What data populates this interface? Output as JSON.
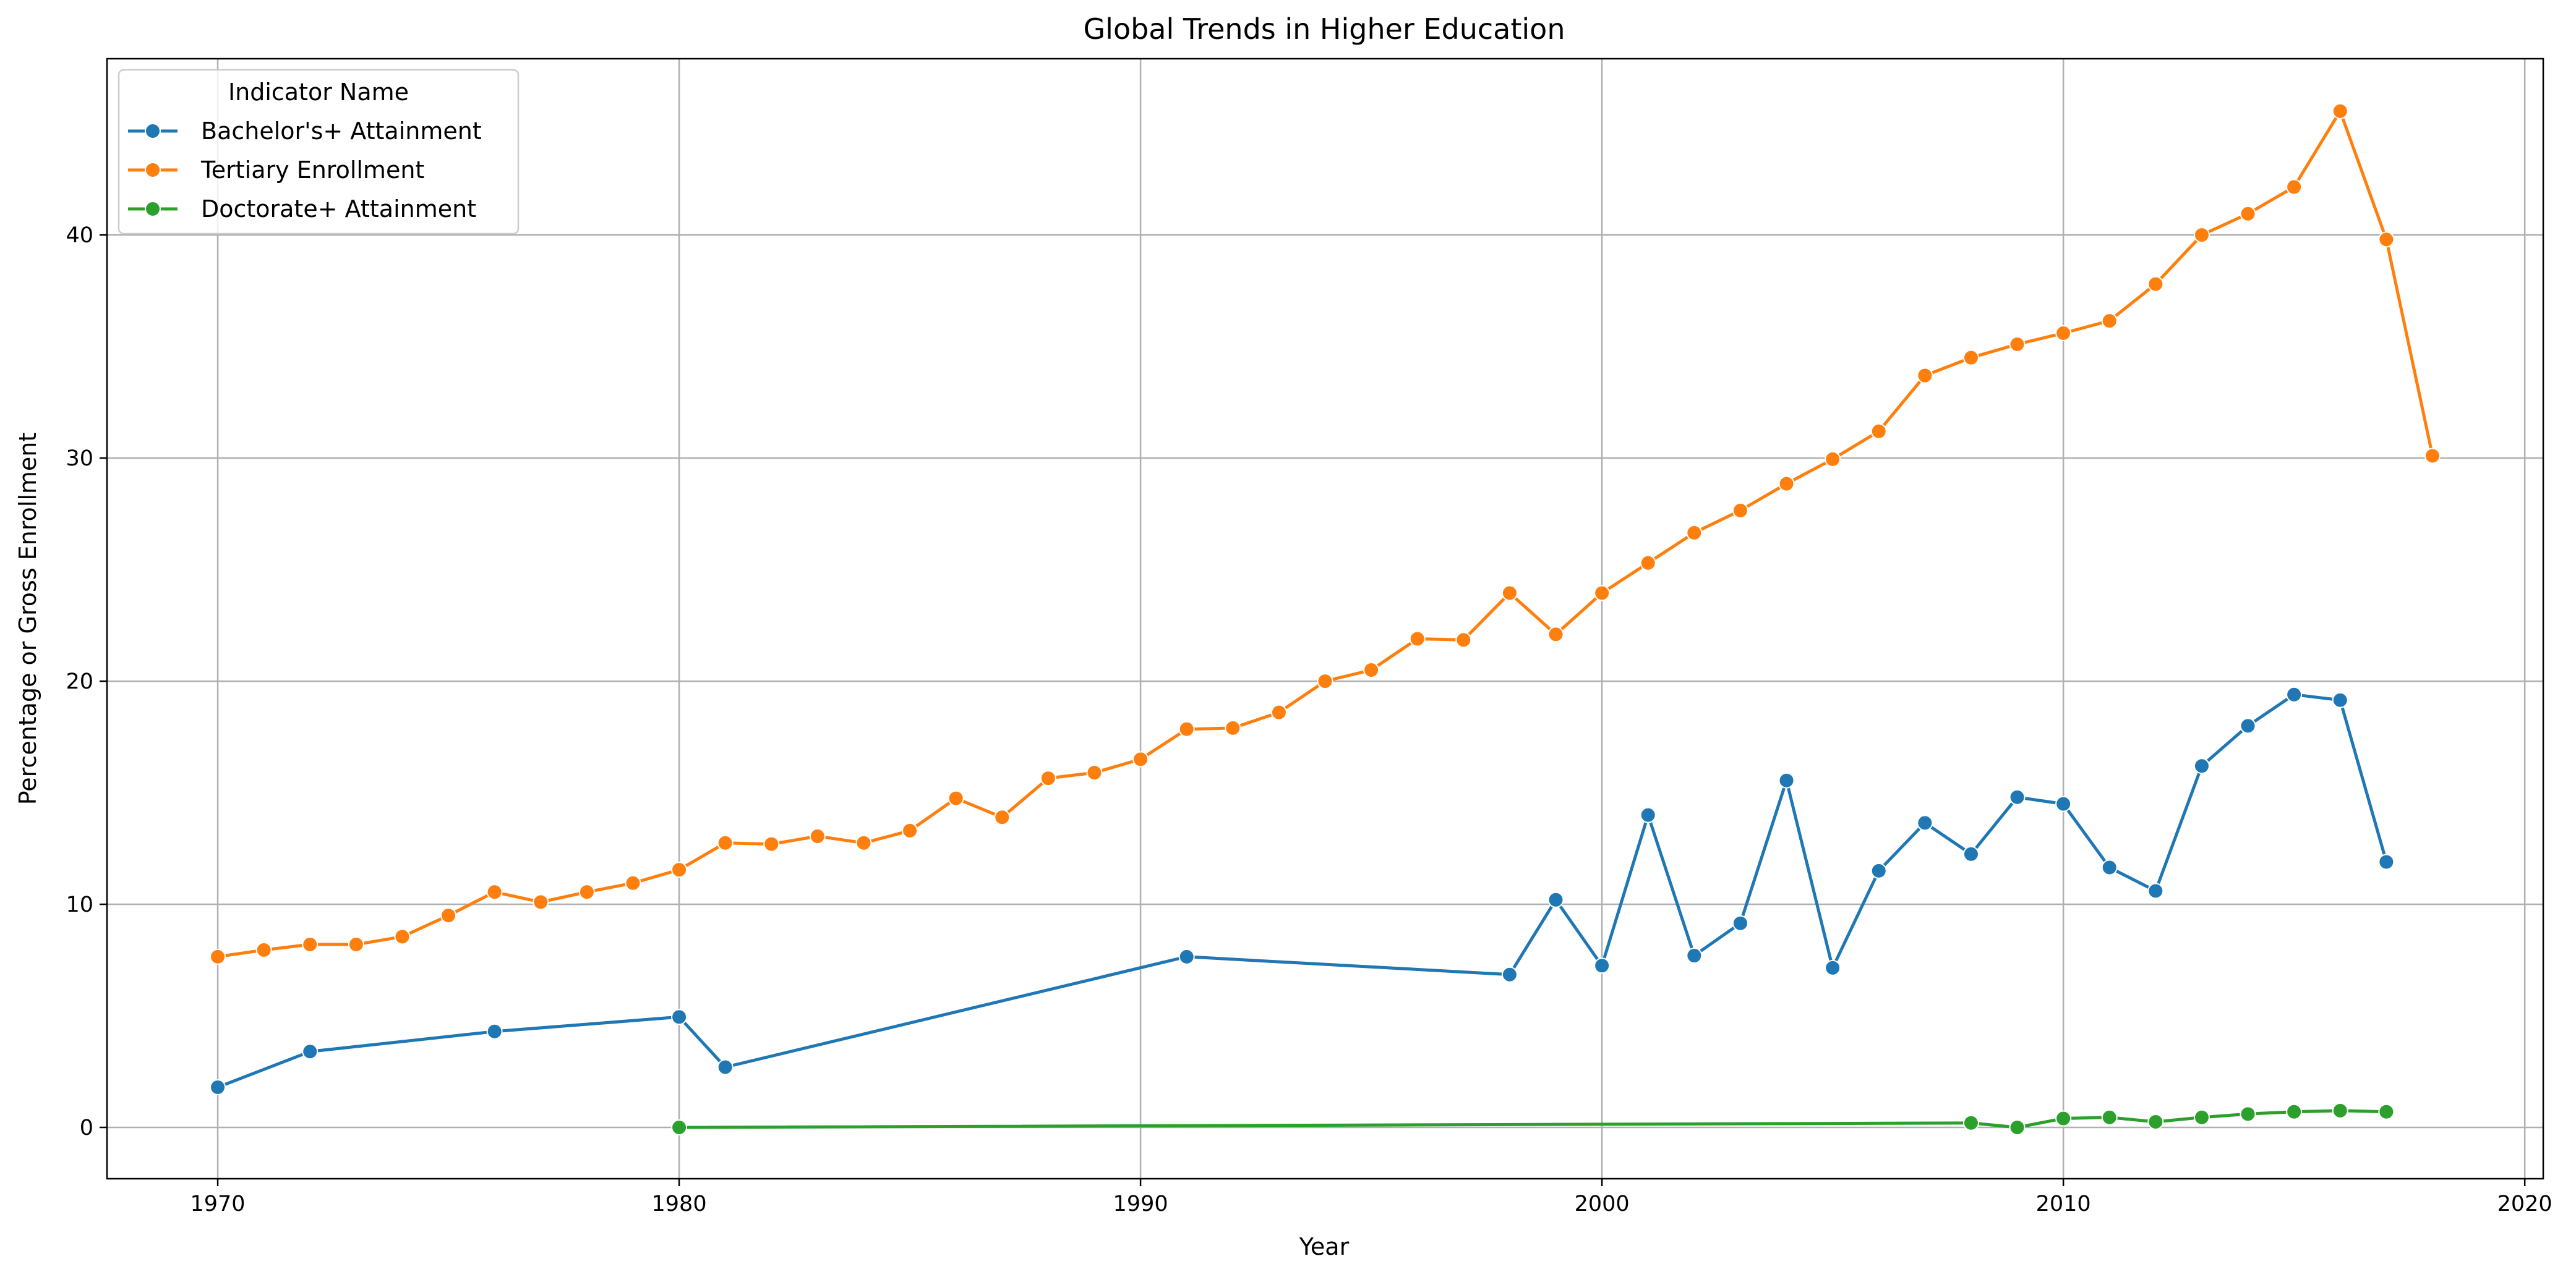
{
  "chart_data": {
    "type": "line",
    "title": "Global Trends in Higher Education",
    "xlabel": "Year",
    "ylabel": "Percentage or Gross Enrollment",
    "xlim": [
      1967.6,
      2020.4
    ],
    "ylim": [
      -2.3,
      47.9
    ],
    "xticks": [
      1970,
      1980,
      1990,
      2000,
      2010,
      2020
    ],
    "yticks": [
      0,
      10,
      20,
      30,
      40
    ],
    "grid": true,
    "legend": {
      "title": "Indicator Name",
      "placement": "top-left"
    },
    "series": [
      {
        "name": "Bachelor's+ Attainment",
        "color": "#1f77b4",
        "points": [
          [
            1970,
            1.8
          ],
          [
            1972,
            3.4
          ],
          [
            1976,
            4.3
          ],
          [
            1980,
            4.95
          ],
          [
            1981,
            2.7
          ],
          [
            1991,
            7.65
          ],
          [
            1998,
            6.85
          ],
          [
            1999,
            10.2
          ],
          [
            2000,
            7.25
          ],
          [
            2001,
            14.0
          ],
          [
            2002,
            7.7
          ],
          [
            2003,
            9.15
          ],
          [
            2004,
            15.55
          ],
          [
            2005,
            7.15
          ],
          [
            2006,
            11.5
          ],
          [
            2007,
            13.65
          ],
          [
            2008,
            12.25
          ],
          [
            2009,
            14.8
          ],
          [
            2010,
            14.5
          ],
          [
            2011,
            11.65
          ],
          [
            2012,
            10.6
          ],
          [
            2013,
            16.2
          ],
          [
            2014,
            18.0
          ],
          [
            2015,
            19.4
          ],
          [
            2016,
            19.15
          ],
          [
            2017,
            11.9
          ]
        ]
      },
      {
        "name": "Tertiary Enrollment",
        "color": "#ff7f0e",
        "points": [
          [
            1970,
            7.65
          ],
          [
            1971,
            7.95
          ],
          [
            1972,
            8.2
          ],
          [
            1973,
            8.2
          ],
          [
            1974,
            8.55
          ],
          [
            1975,
            9.5
          ],
          [
            1976,
            10.55
          ],
          [
            1977,
            10.1
          ],
          [
            1978,
            10.55
          ],
          [
            1979,
            10.95
          ],
          [
            1980,
            11.55
          ],
          [
            1981,
            12.75
          ],
          [
            1982,
            12.7
          ],
          [
            1983,
            13.05
          ],
          [
            1984,
            12.75
          ],
          [
            1985,
            13.3
          ],
          [
            1986,
            14.75
          ],
          [
            1987,
            13.9
          ],
          [
            1988,
            15.65
          ],
          [
            1989,
            15.9
          ],
          [
            1990,
            16.5
          ],
          [
            1991,
            17.85
          ],
          [
            1992,
            17.9
          ],
          [
            1993,
            18.6
          ],
          [
            1994,
            20.0
          ],
          [
            1995,
            20.5
          ],
          [
            1996,
            21.9
          ],
          [
            1997,
            21.85
          ],
          [
            1998,
            23.95
          ],
          [
            1999,
            22.1
          ],
          [
            2000,
            23.95
          ],
          [
            2001,
            25.3
          ],
          [
            2002,
            26.65
          ],
          [
            2003,
            27.65
          ],
          [
            2004,
            28.85
          ],
          [
            2005,
            29.95
          ],
          [
            2006,
            31.2
          ],
          [
            2007,
            33.7
          ],
          [
            2008,
            34.5
          ],
          [
            2009,
            35.1
          ],
          [
            2010,
            35.6
          ],
          [
            2011,
            36.15
          ],
          [
            2012,
            37.8
          ],
          [
            2013,
            40.0
          ],
          [
            2014,
            40.95
          ],
          [
            2015,
            42.15
          ],
          [
            2016,
            45.55
          ],
          [
            2017,
            39.8
          ],
          [
            2018,
            30.1
          ]
        ]
      },
      {
        "name": "Doctorate+ Attainment",
        "color": "#2ca02c",
        "points": [
          [
            1980,
            0.0
          ],
          [
            2008,
            0.2
          ],
          [
            2009,
            0.0
          ],
          [
            2010,
            0.4
          ],
          [
            2011,
            0.45
          ],
          [
            2012,
            0.25
          ],
          [
            2013,
            0.45
          ],
          [
            2014,
            0.6
          ],
          [
            2015,
            0.7
          ],
          [
            2016,
            0.75
          ],
          [
            2017,
            0.7
          ]
        ]
      }
    ]
  }
}
